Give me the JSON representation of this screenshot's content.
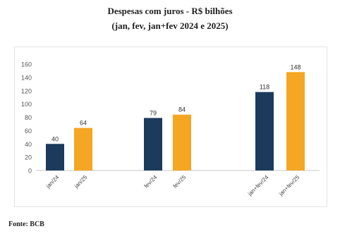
{
  "chart_data": {
    "type": "bar",
    "title": "Despesas com juros - R$ bilhões",
    "subtitle": "(jan, fev, jan+fev 2024 e 2025)",
    "categories": [
      "jan/24",
      "jan/25",
      "fev/24",
      "fev/25",
      "jan+fev/24",
      "jan+fev/25"
    ],
    "values": [
      40,
      64,
      79,
      84,
      118,
      148
    ],
    "value_labels": [
      "40",
      "64",
      "79",
      "84",
      "118",
      "148"
    ],
    "bar_colors": [
      "#1b3a5c",
      "#f5a623",
      "#1b3a5c",
      "#f5a623",
      "#1b3a5c",
      "#f5a623"
    ],
    "ylim": [
      0,
      160
    ],
    "yticks": [
      0,
      20,
      40,
      60,
      80,
      100,
      120,
      140,
      160
    ],
    "xlabel": "",
    "ylabel": "",
    "grid": false,
    "legend": "none"
  },
  "source": "Fonte: BCB"
}
